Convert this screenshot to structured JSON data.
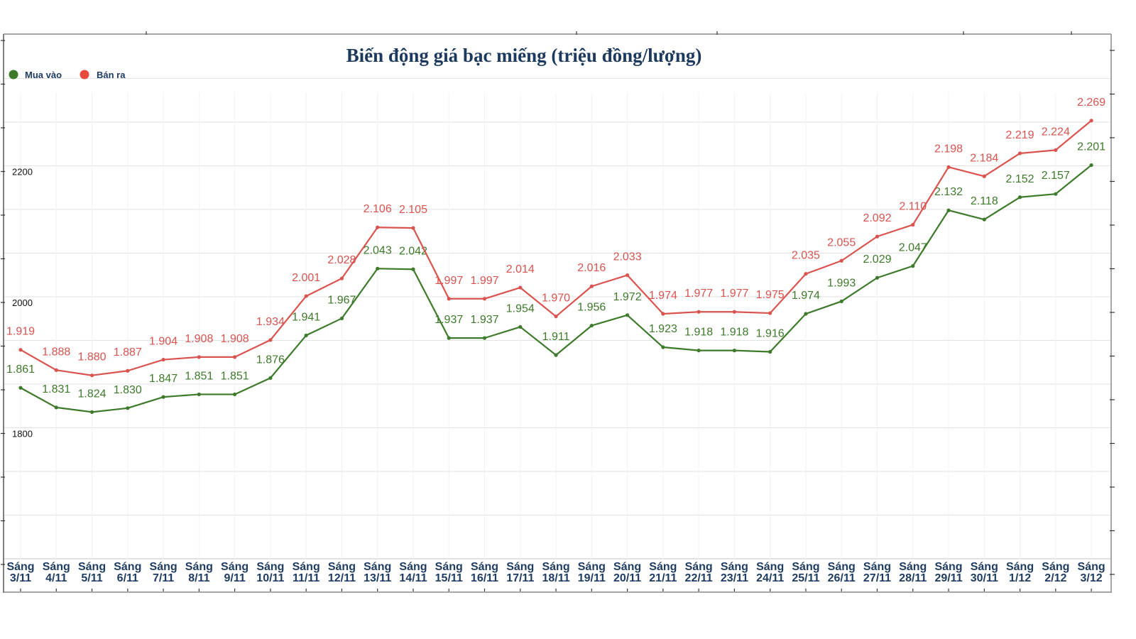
{
  "chart_data": {
    "type": "line",
    "title": "Biến động giá bạc miếng (triệu đồng/lượng)",
    "xlabel": "",
    "ylabel": "",
    "ylim": [
      1600,
      2367
    ],
    "yticks": [
      1800,
      2000,
      2200
    ],
    "ytick_labels": [
      "1800",
      "2000",
      "2200"
    ],
    "grid": true,
    "legend_position": "top-left",
    "categories": [
      [
        "Sáng",
        "3/11"
      ],
      [
        "Sáng",
        "4/11"
      ],
      [
        "Sáng",
        "5/11"
      ],
      [
        "Sáng",
        "6/11"
      ],
      [
        "Sáng",
        "7/11"
      ],
      [
        "Sáng",
        "8/11"
      ],
      [
        "Sáng",
        "9/11"
      ],
      [
        "Sáng",
        "10/11"
      ],
      [
        "Sáng",
        "11/11"
      ],
      [
        "Sáng",
        "12/11"
      ],
      [
        "Sáng",
        "13/11"
      ],
      [
        "Sáng",
        "14/11"
      ],
      [
        "Sáng",
        "15/11"
      ],
      [
        "Sáng",
        "16/11"
      ],
      [
        "Sáng",
        "17/11"
      ],
      [
        "Sáng",
        "18/11"
      ],
      [
        "Sáng",
        "19/11"
      ],
      [
        "Sáng",
        "20/11"
      ],
      [
        "Sáng",
        "21/11"
      ],
      [
        "Sáng",
        "22/11"
      ],
      [
        "Sáng",
        "23/11"
      ],
      [
        "Sáng",
        "24/11"
      ],
      [
        "Sáng",
        "25/11"
      ],
      [
        "Sáng",
        "26/11"
      ],
      [
        "Sáng",
        "27/11"
      ],
      [
        "Sáng",
        "28/11"
      ],
      [
        "Sáng",
        "29/11"
      ],
      [
        "Sáng",
        "30/11"
      ],
      [
        "Sáng",
        "1/12"
      ],
      [
        "Sáng",
        "2/12"
      ],
      [
        "Sáng",
        "3/12"
      ]
    ],
    "series": [
      {
        "name": "Mua vào",
        "color": "#3d7a2a",
        "label_color": "#3d7a2a",
        "values": [
          1861,
          1831,
          1824,
          1830,
          1847,
          1851,
          1851,
          1876,
          1941,
          1967,
          2043,
          2042,
          1937,
          1937,
          1954,
          1911,
          1956,
          1972,
          1923,
          1918,
          1918,
          1916,
          1974,
          1993,
          2029,
          2047,
          2132,
          2118,
          2152,
          2157,
          2201
        ],
        "labels": [
          "1.861",
          "1.831",
          "1.824",
          "1.830",
          "1.847",
          "1.851",
          "1.851",
          "1.876",
          "1.941",
          "1.967",
          "2.043",
          "2.042",
          "1.937",
          "1.937",
          "1.954",
          "1.911",
          "1.956",
          "1.972",
          "1.923",
          "1.918",
          "1.918",
          "1.916",
          "1.974",
          "1.993",
          "2.029",
          "2.047",
          "2.132",
          "2.118",
          "2.152",
          "2.157",
          "2.201"
        ]
      },
      {
        "name": "Bán ra",
        "color": "#d9534f",
        "label_color": "#d9534f",
        "values": [
          1919,
          1888,
          1880,
          1887,
          1904,
          1908,
          1908,
          1934,
          2001,
          2028,
          2106,
          2105,
          1997,
          1997,
          2014,
          1970,
          2016,
          2033,
          1974,
          1977,
          1977,
          1975,
          2035,
          2055,
          2092,
          2110,
          2198,
          2184,
          2219,
          2224,
          2269
        ],
        "labels": [
          "1.919",
          "1.888",
          "1.880",
          "1.887",
          "1.904",
          "1.908",
          "1.908",
          "1.934",
          "2.001",
          "2.028",
          "2.106",
          "2.105",
          "1.997",
          "1.997",
          "2.014",
          "1.970",
          "2.016",
          "2.033",
          "1.974",
          "1.977",
          "1.977",
          "1.975",
          "2.035",
          "2.055",
          "2.092",
          "2.110",
          "2.198",
          "2.184",
          "2.219",
          "2.224",
          "2.269"
        ]
      }
    ]
  },
  "legend": [
    {
      "label": "Mua vào",
      "color": "#3d7a2a"
    },
    {
      "label": "Bán ra",
      "color": "#e84b3c"
    }
  ]
}
